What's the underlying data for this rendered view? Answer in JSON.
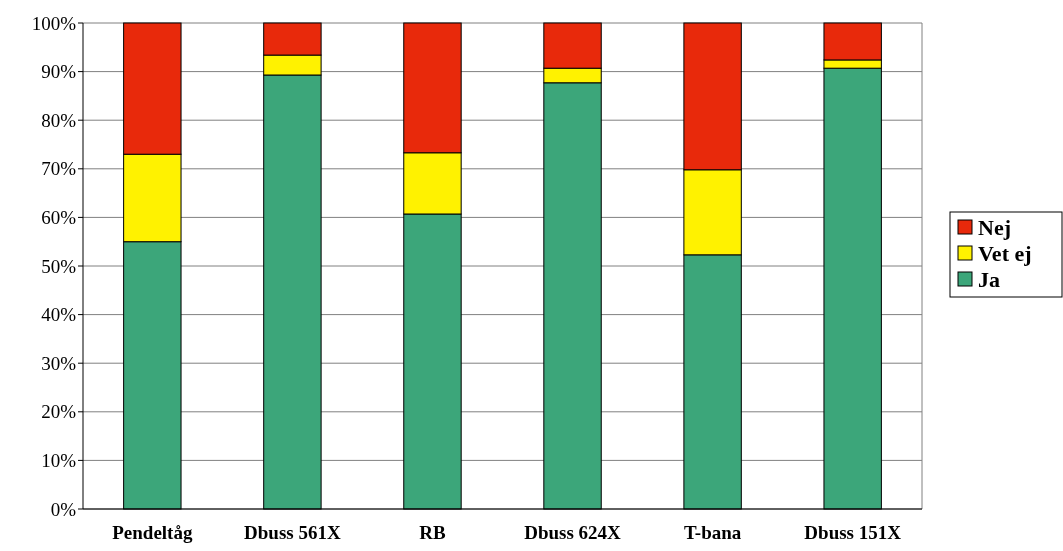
{
  "chart_data": {
    "type": "bar",
    "stacked": true,
    "categories": [
      "Pendeltåg",
      "Dbuss 561X",
      "RB",
      "Dbuss 624X",
      "T-bana",
      "Dbuss 151X"
    ],
    "series": [
      {
        "name": "Ja",
        "color": "#3ca67a",
        "values": [
          55,
          89.3,
          60.7,
          87.7,
          52.3,
          90.7
        ]
      },
      {
        "name": "Vet ej",
        "color": "#fff200",
        "values": [
          18,
          4.1,
          12.6,
          3.0,
          17.5,
          1.7
        ]
      },
      {
        "name": "Nej",
        "color": "#e8290b",
        "values": [
          27,
          6.6,
          26.7,
          9.3,
          30.2,
          7.6
        ]
      }
    ],
    "ylim": [
      0,
      100
    ],
    "yticks": [
      {
        "value": 0,
        "label": "0%"
      },
      {
        "value": 10,
        "label": "10%"
      },
      {
        "value": 20,
        "label": "20%"
      },
      {
        "value": 30,
        "label": "30%"
      },
      {
        "value": 40,
        "label": "40%"
      },
      {
        "value": 50,
        "label": "50%"
      },
      {
        "value": 60,
        "label": "60%"
      },
      {
        "value": 70,
        "label": "70%"
      },
      {
        "value": 80,
        "label": "80%"
      },
      {
        "value": 90,
        "label": "90%"
      },
      {
        "value": 100,
        "label": "100%"
      }
    ],
    "grid": "y",
    "legend": "right"
  }
}
